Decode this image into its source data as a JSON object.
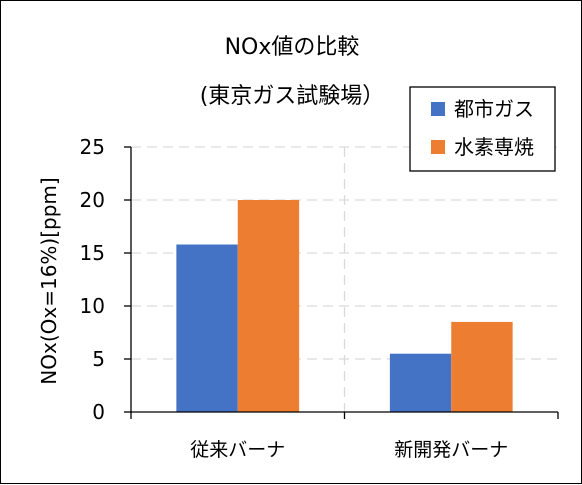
{
  "chart_data": {
    "type": "bar",
    "title": "NOx値の比較",
    "subtitle": "(東京ガス試験場）",
    "ylabel": "NOx(Ox=16%)[ppm]",
    "xlabel": "",
    "categories": [
      "従来バーナ",
      "新開発バーナ"
    ],
    "series": [
      {
        "name": "都市ガス",
        "values": [
          15.8,
          5.5
        ],
        "color": "#4472C4"
      },
      {
        "name": "水素専焼",
        "values": [
          20.0,
          8.5
        ],
        "color": "#ED7D31"
      }
    ],
    "ylim": [
      0,
      25
    ],
    "yticks": [
      0,
      5,
      10,
      15,
      20,
      25
    ],
    "grid": "dashed",
    "legend_position": "top-right"
  }
}
